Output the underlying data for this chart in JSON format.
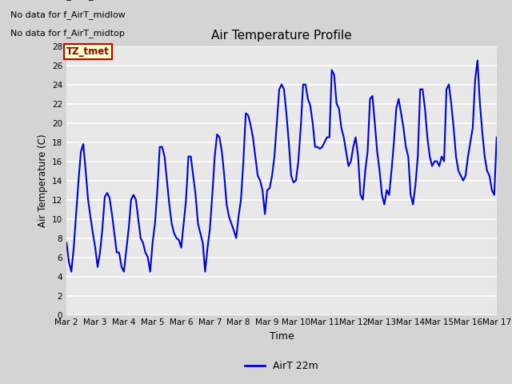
{
  "title": "Air Temperature Profile",
  "xlabel": "Time",
  "ylabel": "Air Temperature (C)",
  "legend_label": "AirT 22m",
  "ylim": [
    0,
    28
  ],
  "yticks": [
    0,
    2,
    4,
    6,
    8,
    10,
    12,
    14,
    16,
    18,
    20,
    22,
    24,
    26,
    28
  ],
  "line_color": "#0000dd",
  "fig_facecolor": "#d4d4d4",
  "plot_facecolor": "#e8e8e8",
  "grid_color": "#ffffff",
  "no_data_texts": [
    "No data for f_AirT_low",
    "No data for f_AirT_midlow",
    "No data for f_AirT_midtop"
  ],
  "tz_label": "TZ_tmet",
  "x_tick_labels": [
    "Mar 2",
    "Mar 3",
    "Mar 4",
    "Mar 5",
    "Mar 6",
    "Mar 7",
    "Mar 8",
    "Mar 9",
    "Mar 10",
    "Mar 11",
    "Mar 12",
    "Mar 13",
    "Mar 14",
    "Mar 15",
    "Mar 16",
    "Mar 17"
  ],
  "x_tick_positions": [
    0,
    1,
    2,
    3,
    4,
    5,
    6,
    7,
    8,
    9,
    10,
    11,
    12,
    13,
    14,
    15
  ],
  "data_x": [
    0.0,
    0.083,
    0.167,
    0.25,
    0.333,
    0.417,
    0.5,
    0.583,
    0.667,
    0.75,
    0.833,
    0.917,
    1.0,
    1.083,
    1.167,
    1.25,
    1.333,
    1.417,
    1.5,
    1.583,
    1.667,
    1.75,
    1.833,
    1.917,
    2.0,
    2.083,
    2.167,
    2.25,
    2.333,
    2.417,
    2.5,
    2.583,
    2.667,
    2.75,
    2.833,
    2.917,
    3.0,
    3.083,
    3.167,
    3.25,
    3.333,
    3.417,
    3.5,
    3.583,
    3.667,
    3.75,
    3.833,
    3.917,
    4.0,
    4.083,
    4.167,
    4.25,
    4.333,
    4.417,
    4.5,
    4.583,
    4.667,
    4.75,
    4.833,
    4.917,
    5.0,
    5.083,
    5.167,
    5.25,
    5.333,
    5.417,
    5.5,
    5.583,
    5.667,
    5.75,
    5.833,
    5.917,
    6.0,
    6.083,
    6.167,
    6.25,
    6.333,
    6.417,
    6.5,
    6.583,
    6.667,
    6.75,
    6.833,
    6.917,
    7.0,
    7.083,
    7.167,
    7.25,
    7.333,
    7.417,
    7.5,
    7.583,
    7.667,
    7.75,
    7.833,
    7.917,
    8.0,
    8.083,
    8.167,
    8.25,
    8.333,
    8.417,
    8.5,
    8.583,
    8.667,
    8.75,
    8.833,
    8.917,
    9.0,
    9.083,
    9.167,
    9.25,
    9.333,
    9.417,
    9.5,
    9.583,
    9.667,
    9.75,
    9.833,
    9.917,
    10.0,
    10.083,
    10.167,
    10.25,
    10.333,
    10.417,
    10.5,
    10.583,
    10.667,
    10.75,
    10.833,
    10.917,
    11.0,
    11.083,
    11.167,
    11.25,
    11.333,
    11.417,
    11.5,
    11.583,
    11.667,
    11.75,
    11.833,
    11.917,
    12.0,
    12.083,
    12.167,
    12.25,
    12.333,
    12.417,
    12.5,
    12.583,
    12.667,
    12.75,
    12.833,
    12.917,
    13.0,
    13.083,
    13.167,
    13.25,
    13.333,
    13.417,
    13.5,
    13.583,
    13.667,
    13.75,
    13.833,
    13.917,
    14.0,
    14.083,
    14.167,
    14.25,
    14.333,
    14.417,
    14.5,
    14.583,
    14.667,
    14.75,
    14.833,
    14.917,
    15.0
  ],
  "data_y": [
    7.5,
    5.5,
    4.5,
    7.0,
    10.5,
    14.0,
    17.0,
    17.8,
    15.0,
    12.0,
    10.2,
    8.5,
    7.0,
    5.0,
    6.5,
    9.0,
    12.3,
    12.7,
    12.2,
    10.5,
    8.5,
    6.5,
    6.5,
    5.0,
    4.5,
    6.7,
    9.0,
    12.0,
    12.5,
    12.0,
    10.0,
    8.0,
    7.5,
    6.5,
    6.0,
    4.5,
    7.5,
    9.5,
    13.0,
    17.5,
    17.5,
    16.5,
    14.0,
    11.5,
    9.5,
    8.5,
    8.0,
    7.8,
    7.0,
    9.5,
    12.0,
    16.5,
    16.5,
    14.5,
    12.5,
    9.5,
    8.5,
    7.5,
    4.5,
    7.0,
    9.0,
    12.5,
    16.5,
    18.8,
    18.5,
    17.0,
    14.5,
    11.5,
    10.2,
    9.5,
    8.8,
    8.0,
    10.3,
    12.0,
    16.0,
    21.0,
    20.8,
    19.8,
    18.5,
    16.5,
    14.5,
    14.0,
    13.0,
    10.5,
    13.0,
    13.2,
    14.5,
    16.5,
    20.0,
    23.5,
    24.0,
    23.5,
    21.0,
    18.0,
    14.5,
    13.8,
    14.0,
    16.0,
    19.5,
    24.0,
    24.0,
    22.5,
    21.8,
    20.0,
    17.5,
    17.5,
    17.3,
    17.5,
    18.0,
    18.5,
    18.5,
    25.5,
    25.0,
    22.0,
    21.5,
    19.5,
    18.5,
    17.0,
    15.5,
    16.0,
    17.5,
    18.5,
    16.5,
    12.5,
    12.0,
    15.0,
    17.0,
    22.5,
    22.8,
    20.0,
    17.0,
    15.0,
    12.5,
    11.5,
    13.0,
    12.5,
    15.0,
    18.0,
    21.5,
    22.5,
    21.0,
    19.5,
    17.5,
    16.5,
    12.5,
    11.5,
    13.5,
    16.5,
    23.5,
    23.5,
    21.5,
    18.5,
    16.5,
    15.5,
    16.0,
    16.0,
    15.5,
    16.5,
    16.0,
    23.5,
    24.0,
    22.0,
    19.5,
    16.5,
    15.0,
    14.5,
    14.0,
    14.5,
    16.5,
    18.0,
    19.5,
    24.5,
    26.5,
    22.0,
    19.0,
    16.5,
    15.0,
    14.5,
    13.0,
    12.5,
    18.5
  ]
}
